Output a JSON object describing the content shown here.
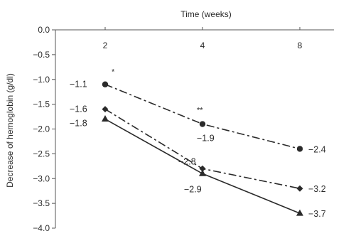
{
  "chart_data": {
    "type": "line",
    "title": "",
    "xlabel": "Time (weeks)",
    "ylabel": "Decrease of hemoglobin (g/dl)",
    "categories": [
      "2",
      "4",
      "8"
    ],
    "ylim": [
      -4.0,
      0.0
    ],
    "yticks": [
      "0.0",
      "-0.5",
      "-1.0",
      "-1.5",
      "-2.0",
      "-2.5",
      "-3.0",
      "-3.5",
      "-4.0"
    ],
    "x_axis_position": "top",
    "grid": false,
    "legend": "none",
    "series": [
      {
        "values": [
          -1.1,
          -1.9,
          -2.4
        ],
        "labels": [
          "-1.1",
          "-1.9",
          "-2.4"
        ],
        "marker": "circle",
        "line_style": "dash-dot",
        "color": "#2a2a2a"
      },
      {
        "values": [
          -1.6,
          -2.8,
          -3.2
        ],
        "labels": [
          "-1.6",
          "-2.8",
          "-3.2"
        ],
        "marker": "diamond",
        "line_style": "dash-dot",
        "color": "#2a2a2a"
      },
      {
        "values": [
          -1.8,
          -2.9,
          -3.7
        ],
        "labels": [
          "-1.8",
          "-2.9",
          "-3.7"
        ],
        "marker": "triangle",
        "line_style": "solid",
        "color": "#2a2a2a"
      }
    ],
    "annotations": [
      {
        "text": "*",
        "category": "2",
        "series": 0
      },
      {
        "text": "**",
        "category": "4",
        "series": 0
      }
    ]
  }
}
